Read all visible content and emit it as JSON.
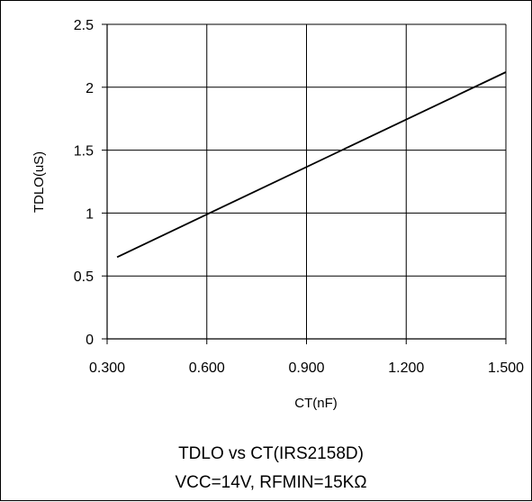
{
  "chart_data": {
    "type": "line",
    "title_lines": [
      "TDLO vs CT(IRS2158D)",
      "VCC=14V, RFMIN=15KΩ"
    ],
    "xlabel": "CT(nF)",
    "ylabel": "TDLO(uS)",
    "xlim": [
      0.3,
      1.5
    ],
    "ylim": [
      0,
      2.5
    ],
    "x_ticks": [
      "0.300",
      "0.600",
      "0.900",
      "1.200",
      "1.500"
    ],
    "y_ticks": [
      "0",
      "0.5",
      "1",
      "1.5",
      "2",
      "2.5"
    ],
    "grid": true,
    "series": [
      {
        "x": [
          0.33,
          1.5
        ],
        "y": [
          0.65,
          2.12
        ],
        "color": "#000000"
      }
    ]
  }
}
